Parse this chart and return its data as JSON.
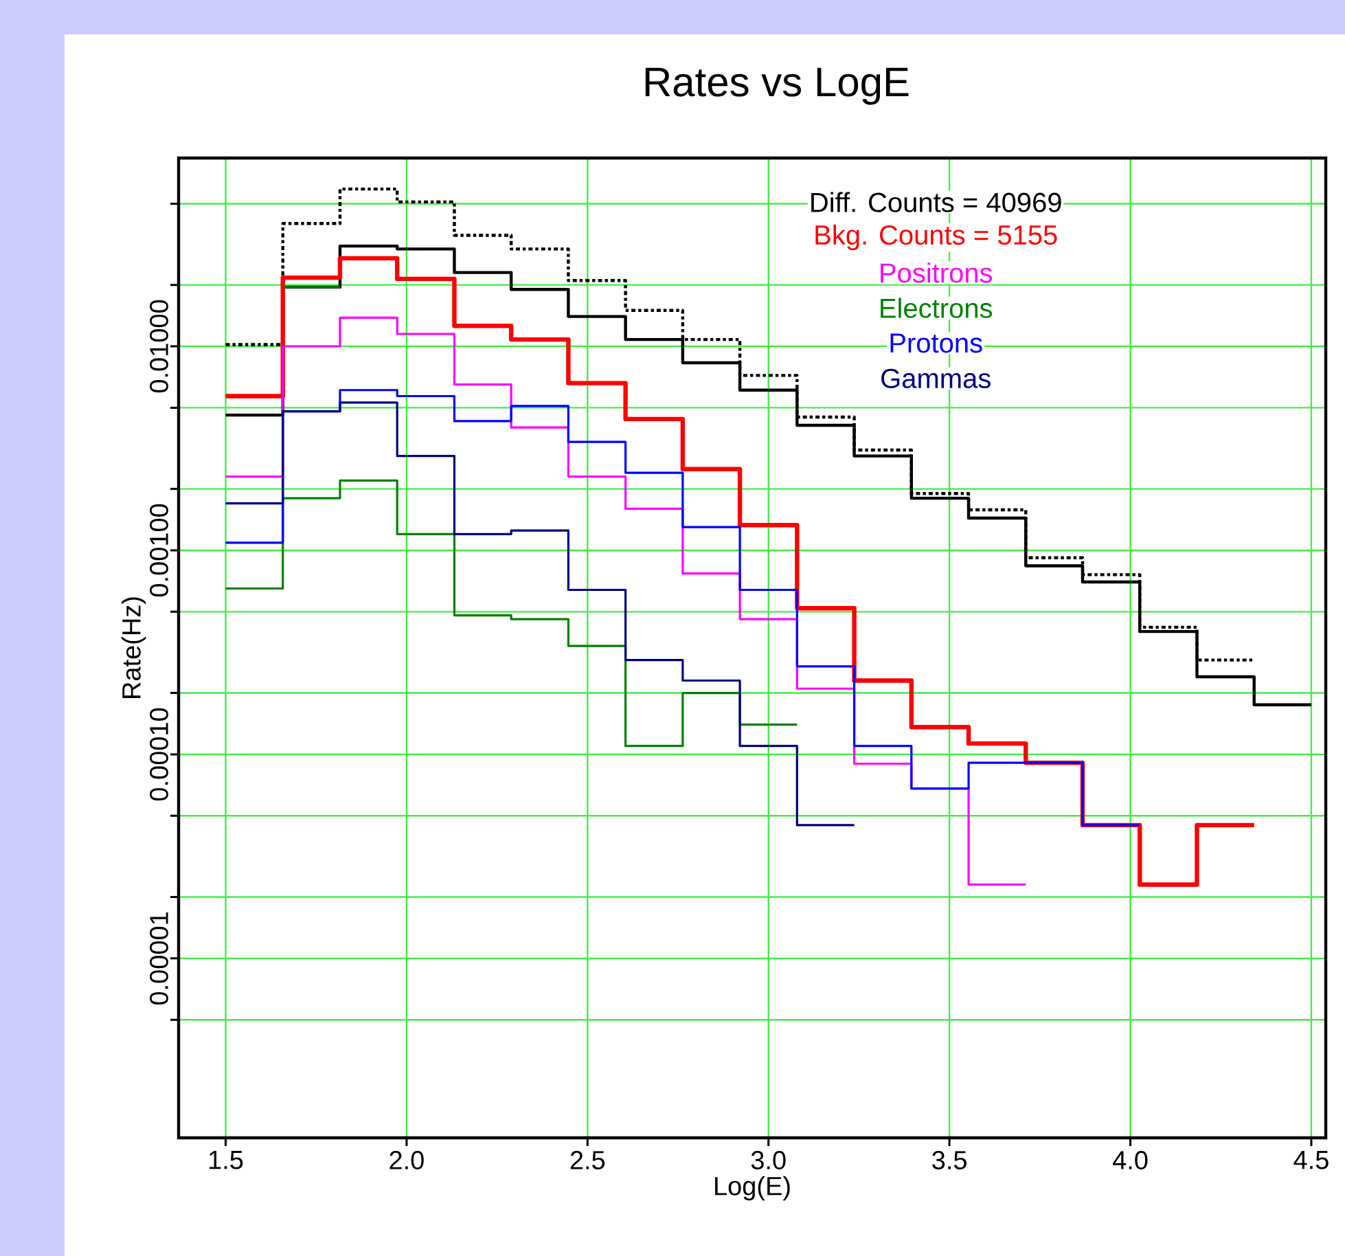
{
  "chart_data": {
    "type": "step",
    "title": "Rates vs LogE",
    "xlabel": "Log(E)",
    "ylabel": "Rate(Hz)",
    "annotations": [
      "Diff. Counts = 40969",
      "Bkg. Counts = 5155"
    ],
    "x": [
      1.5,
      1.658,
      1.816,
      1.974,
      2.132,
      2.289,
      2.447,
      2.605,
      2.763,
      2.921,
      3.079,
      3.237,
      3.395,
      3.553,
      3.711,
      3.868,
      4.026,
      4.184,
      4.342,
      4.5
    ],
    "series": [
      {
        "color": "#000000",
        "line_style": "dotted",
        "values": [
          0.0102,
          0.04,
          0.059,
          0.051,
          0.035,
          0.03,
          0.021,
          0.015,
          0.0108,
          0.0072,
          0.0045,
          0.0031,
          0.0019,
          0.00158,
          0.00092,
          0.00076,
          0.00042,
          0.00029,
          0.00029,
          null
        ]
      },
      {
        "color": "#000000",
        "values": [
          0.0046,
          0.0195,
          0.031,
          0.03,
          0.023,
          0.019,
          0.014,
          0.0108,
          0.0083,
          0.0061,
          0.0041,
          0.0029,
          0.0018,
          0.00144,
          0.00084,
          0.0007,
          0.0004,
          0.00024,
          0.000175,
          0.000175
        ]
      },
      {
        "color": "#ff0000",
        "values": [
          0.0057,
          0.0217,
          0.027,
          0.0214,
          0.0126,
          0.0108,
          0.0066,
          0.0044,
          0.0025,
          0.00133,
          0.00052,
          0.00023,
          0.000136,
          0.000113,
          9.1e-05,
          4.5e-05,
          2.3e-05,
          4.5e-05,
          4.5e-05,
          null
        ]
      },
      {
        "name": "Positrons",
        "color": "#ff00ff",
        "values": [
          0.0023,
          0.01,
          0.0138,
          0.0115,
          0.0065,
          0.004,
          0.0023,
          0.0016,
          0.00077,
          0.00046,
          0.00021,
          9e-05,
          6.8e-05,
          2.3e-05,
          2.3e-05,
          null,
          null,
          null,
          null,
          null
        ]
      },
      {
        "name": "Electrons",
        "color": "#007f00",
        "values": [
          0.00065,
          0.0018,
          0.0022,
          0.0012,
          0.00048,
          0.00046,
          0.00034,
          0.00011,
          0.0002,
          0.00014,
          0.00014,
          null,
          null,
          null,
          null,
          null,
          null,
          null,
          null,
          null
        ]
      },
      {
        "name": "Protons",
        "color": "#0000ff",
        "values": [
          0.00109,
          0.0048,
          0.0061,
          0.0057,
          0.0043,
          0.0051,
          0.0034,
          0.0024,
          0.0013,
          0.00064,
          0.00027,
          0.00011,
          6.8e-05,
          9.1e-05,
          9.1e-05,
          4.5e-05,
          4.5e-05,
          null,
          null,
          null
        ]
      },
      {
        "name": "Gammas",
        "color": "#00007f",
        "values": [
          0.0017,
          0.0048,
          0.0053,
          0.0029,
          0.0012,
          0.00125,
          0.00064,
          0.00029,
          0.00023,
          0.00011,
          4.5e-05,
          4.5e-05,
          null,
          null,
          null,
          null,
          null,
          null,
          null,
          null
        ]
      },
      {
        "color": "#007f00",
        "values": [
          null,
          0.0195,
          0.0195,
          null,
          null,
          null,
          null,
          null,
          null,
          null,
          null,
          null,
          null,
          null,
          null,
          null,
          null,
          null,
          null,
          null
        ]
      }
    ],
    "log": "y",
    "grid": true,
    "legend": "top",
    "xlim": [
      1.37,
      4.54
    ],
    "xticks": [
      {
        "value": 1.5,
        "label": "1.5"
      },
      {
        "value": 2.0,
        "label": "2.0"
      },
      {
        "value": 2.5,
        "label": "2.5"
      },
      {
        "value": 3.0,
        "label": "3.0"
      },
      {
        "value": 3.5,
        "label": "3.5"
      },
      {
        "value": 4.0,
        "label": "4.0"
      },
      {
        "value": 4.5,
        "label": "4.5"
      }
    ],
    "ylim": [
      1.32e-06,
      0.0837
    ],
    "yticks": [
      {
        "value": 0.05,
        "label": null
      },
      {
        "value": 0.02,
        "label": null
      },
      {
        "value": 0.01,
        "label": "0.01000"
      },
      {
        "value": 0.005,
        "label": null
      },
      {
        "value": 0.002,
        "label": null
      },
      {
        "value": 0.001,
        "label": "0.00100"
      },
      {
        "value": 0.0005,
        "label": null
      },
      {
        "value": 0.0002,
        "label": null
      },
      {
        "value": 0.0001,
        "label": "0.00010"
      },
      {
        "value": 5e-05,
        "label": null
      },
      {
        "value": 2e-05,
        "label": null
      },
      {
        "value": 1e-05,
        "label": "0.00001"
      },
      {
        "value": 5e-06,
        "label": null
      }
    ]
  }
}
